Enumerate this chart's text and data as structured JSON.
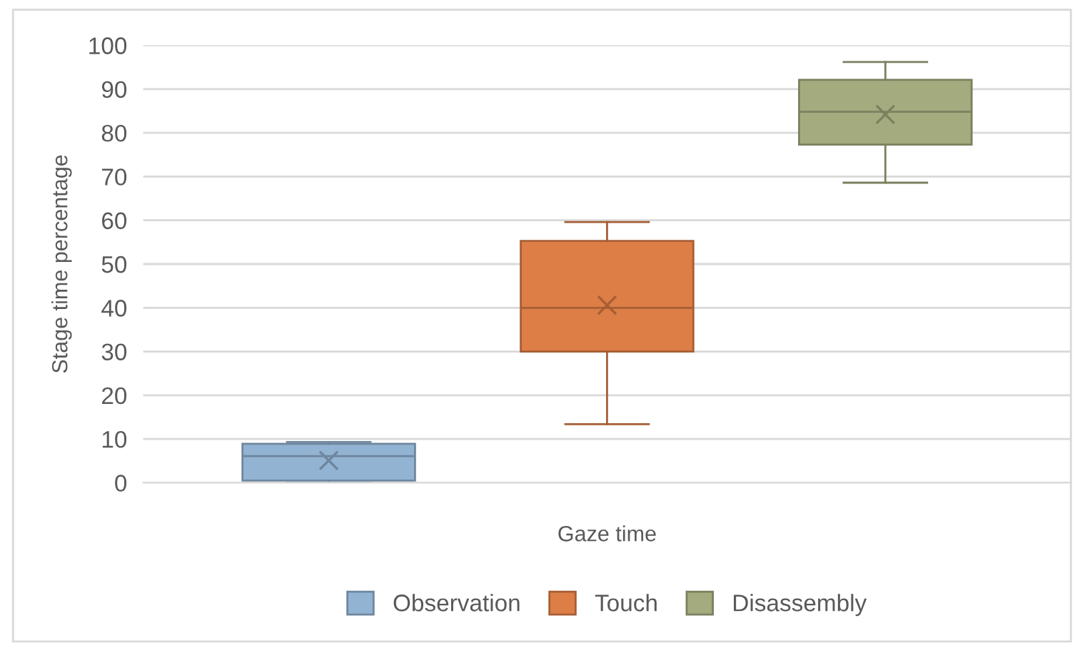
{
  "chart_data": {
    "type": "box",
    "xlabel": "Gaze time",
    "ylabel": "Stage time percentage",
    "categories": [
      null
    ],
    "series": [
      {
        "name": "Observation",
        "color": "#93b3d2",
        "boxes": [
          {
            "low": 0,
            "q1": 0.5,
            "median": 6.1,
            "q3": 8.9,
            "high": 9.3,
            "mean": 5.1
          }
        ]
      },
      {
        "name": "Touch",
        "color": "#dd7e46",
        "boxes": [
          {
            "low": 13.4,
            "q1": 30,
            "median": 40,
            "q3": 55.3,
            "high": 59.6,
            "mean": 40.6
          }
        ]
      },
      {
        "name": "Disassembly",
        "color": "#a4ab7f",
        "boxes": [
          {
            "low": 68.6,
            "q1": 77.3,
            "median": 84.8,
            "q3": 92.1,
            "high": 96.2,
            "mean": 84.2
          }
        ]
      }
    ],
    "ylim": [
      0,
      100
    ],
    "yticks": [
      0,
      10,
      20,
      30,
      40,
      50,
      60,
      70,
      80,
      90,
      100
    ],
    "grid": "y",
    "legend": "bottom"
  }
}
